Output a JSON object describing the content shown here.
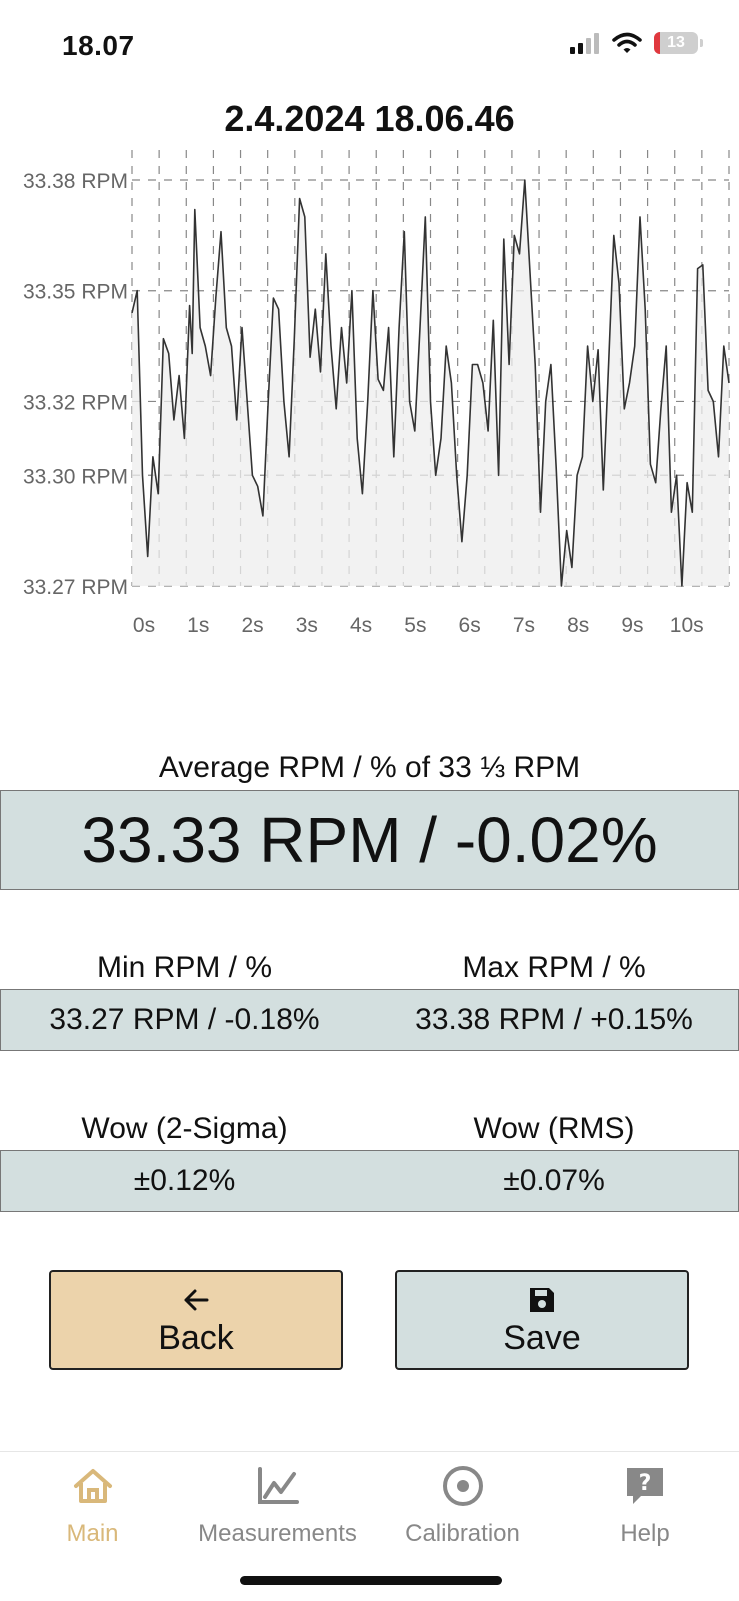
{
  "status": {
    "time": "18.07",
    "battery": "13"
  },
  "chart_data": {
    "type": "area",
    "title": "2.4.2024 18.06.46",
    "y_ticks": [
      "33.38 RPM",
      "33.35 RPM",
      "33.32 RPM",
      "33.30 RPM",
      "33.27 RPM"
    ],
    "y_tick_values": [
      33.38,
      33.35,
      33.32,
      33.3,
      33.27
    ],
    "x_ticks": [
      "0s",
      "1s",
      "2s",
      "3s",
      "4s",
      "5s",
      "6s",
      "7s",
      "8s",
      "9s",
      "10s"
    ],
    "ylim": [
      33.27,
      33.38
    ],
    "xlim": [
      0,
      11
    ],
    "grid": true,
    "series": [
      {
        "values": [
          [
            0.0,
            33.344
          ],
          [
            0.1,
            33.35
          ],
          [
            0.2,
            33.3
          ],
          [
            0.3,
            33.278
          ],
          [
            0.4,
            33.305
          ],
          [
            0.5,
            33.295
          ],
          [
            0.6,
            33.337
          ],
          [
            0.7,
            33.333
          ],
          [
            0.8,
            33.315
          ],
          [
            0.9,
            33.327
          ],
          [
            1.0,
            33.31
          ],
          [
            1.1,
            33.346
          ],
          [
            1.15,
            33.333
          ],
          [
            1.2,
            33.372
          ],
          [
            1.3,
            33.34
          ],
          [
            1.4,
            33.335
          ],
          [
            1.5,
            33.327
          ],
          [
            1.6,
            33.348
          ],
          [
            1.7,
            33.366
          ],
          [
            1.8,
            33.34
          ],
          [
            1.9,
            33.335
          ],
          [
            2.0,
            33.315
          ],
          [
            2.1,
            33.34
          ],
          [
            2.2,
            33.32
          ],
          [
            2.3,
            33.3
          ],
          [
            2.4,
            33.297
          ],
          [
            2.5,
            33.289
          ],
          [
            2.6,
            33.32
          ],
          [
            2.7,
            33.348
          ],
          [
            2.8,
            33.345
          ],
          [
            2.9,
            33.32
          ],
          [
            3.0,
            33.305
          ],
          [
            3.1,
            33.337
          ],
          [
            3.2,
            33.375
          ],
          [
            3.3,
            33.37
          ],
          [
            3.4,
            33.332
          ],
          [
            3.5,
            33.345
          ],
          [
            3.6,
            33.328
          ],
          [
            3.7,
            33.36
          ],
          [
            3.8,
            33.335
          ],
          [
            3.9,
            33.318
          ],
          [
            4.0,
            33.34
          ],
          [
            4.1,
            33.325
          ],
          [
            4.2,
            33.35
          ],
          [
            4.3,
            33.31
          ],
          [
            4.4,
            33.295
          ],
          [
            4.5,
            33.32
          ],
          [
            4.6,
            33.35
          ],
          [
            4.7,
            33.326
          ],
          [
            4.8,
            33.323
          ],
          [
            4.9,
            33.34
          ],
          [
            5.0,
            33.305
          ],
          [
            5.1,
            33.34
          ],
          [
            5.2,
            33.366
          ],
          [
            5.3,
            33.32
          ],
          [
            5.4,
            33.312
          ],
          [
            5.5,
            33.34
          ],
          [
            5.6,
            33.37
          ],
          [
            5.7,
            33.32
          ],
          [
            5.8,
            33.3
          ],
          [
            5.9,
            33.31
          ],
          [
            6.0,
            33.335
          ],
          [
            6.1,
            33.325
          ],
          [
            6.2,
            33.3
          ],
          [
            6.3,
            33.282
          ],
          [
            6.4,
            33.3
          ],
          [
            6.5,
            33.33
          ],
          [
            6.6,
            33.33
          ],
          [
            6.7,
            33.325
          ],
          [
            6.8,
            33.312
          ],
          [
            6.9,
            33.342
          ],
          [
            7.0,
            33.3
          ],
          [
            7.1,
            33.364
          ],
          [
            7.2,
            33.33
          ],
          [
            7.3,
            33.365
          ],
          [
            7.4,
            33.36
          ],
          [
            7.5,
            33.38
          ],
          [
            7.6,
            33.355
          ],
          [
            7.7,
            33.33
          ],
          [
            7.8,
            33.29
          ],
          [
            7.9,
            33.32
          ],
          [
            8.0,
            33.33
          ],
          [
            8.1,
            33.302
          ],
          [
            8.2,
            33.27
          ],
          [
            8.3,
            33.285
          ],
          [
            8.4,
            33.275
          ],
          [
            8.5,
            33.3
          ],
          [
            8.6,
            33.305
          ],
          [
            8.7,
            33.335
          ],
          [
            8.8,
            33.32
          ],
          [
            8.9,
            33.334
          ],
          [
            9.0,
            33.296
          ],
          [
            9.1,
            33.33
          ],
          [
            9.2,
            33.365
          ],
          [
            9.3,
            33.352
          ],
          [
            9.4,
            33.318
          ],
          [
            9.5,
            33.325
          ],
          [
            9.6,
            33.335
          ],
          [
            9.7,
            33.37
          ],
          [
            9.8,
            33.345
          ],
          [
            9.9,
            33.303
          ],
          [
            10.0,
            33.298
          ],
          [
            10.1,
            33.318
          ],
          [
            10.2,
            33.335
          ],
          [
            10.3,
            33.29
          ],
          [
            10.4,
            33.3
          ],
          [
            10.5,
            33.27
          ],
          [
            10.6,
            33.298
          ],
          [
            10.7,
            33.29
          ],
          [
            10.8,
            33.356
          ],
          [
            10.9,
            33.357
          ],
          [
            11.0,
            33.323
          ],
          [
            11.1,
            33.32
          ],
          [
            11.2,
            33.305
          ],
          [
            11.3,
            33.335
          ],
          [
            11.4,
            33.325
          ]
        ]
      }
    ]
  },
  "average": {
    "label": "Average RPM / % of 33 ⅓ RPM",
    "value": "33.33 RPM / -0.02%"
  },
  "min": {
    "label": "Min RPM / %",
    "value": "33.27 RPM / -0.18%"
  },
  "max": {
    "label": "Max RPM / %",
    "value": "33.38 RPM / +0.15%"
  },
  "wow2": {
    "label": "Wow (2-Sigma)",
    "value": "±0.12%"
  },
  "wowrms": {
    "label": "Wow (RMS)",
    "value": "±0.07%"
  },
  "buttons": {
    "back": "Back",
    "save": "Save"
  },
  "tabs": [
    {
      "label": "Main",
      "icon": "home-icon",
      "active": true
    },
    {
      "label": "Measurements",
      "icon": "chart-line-icon"
    },
    {
      "label": "Calibration",
      "icon": "target-icon"
    },
    {
      "label": "Help",
      "icon": "help-icon"
    }
  ],
  "colors": {
    "accent": "#d9b87a",
    "panel": "#d3dfdf",
    "back_button": "#ecd3ab",
    "tab_inactive": "#888888"
  }
}
